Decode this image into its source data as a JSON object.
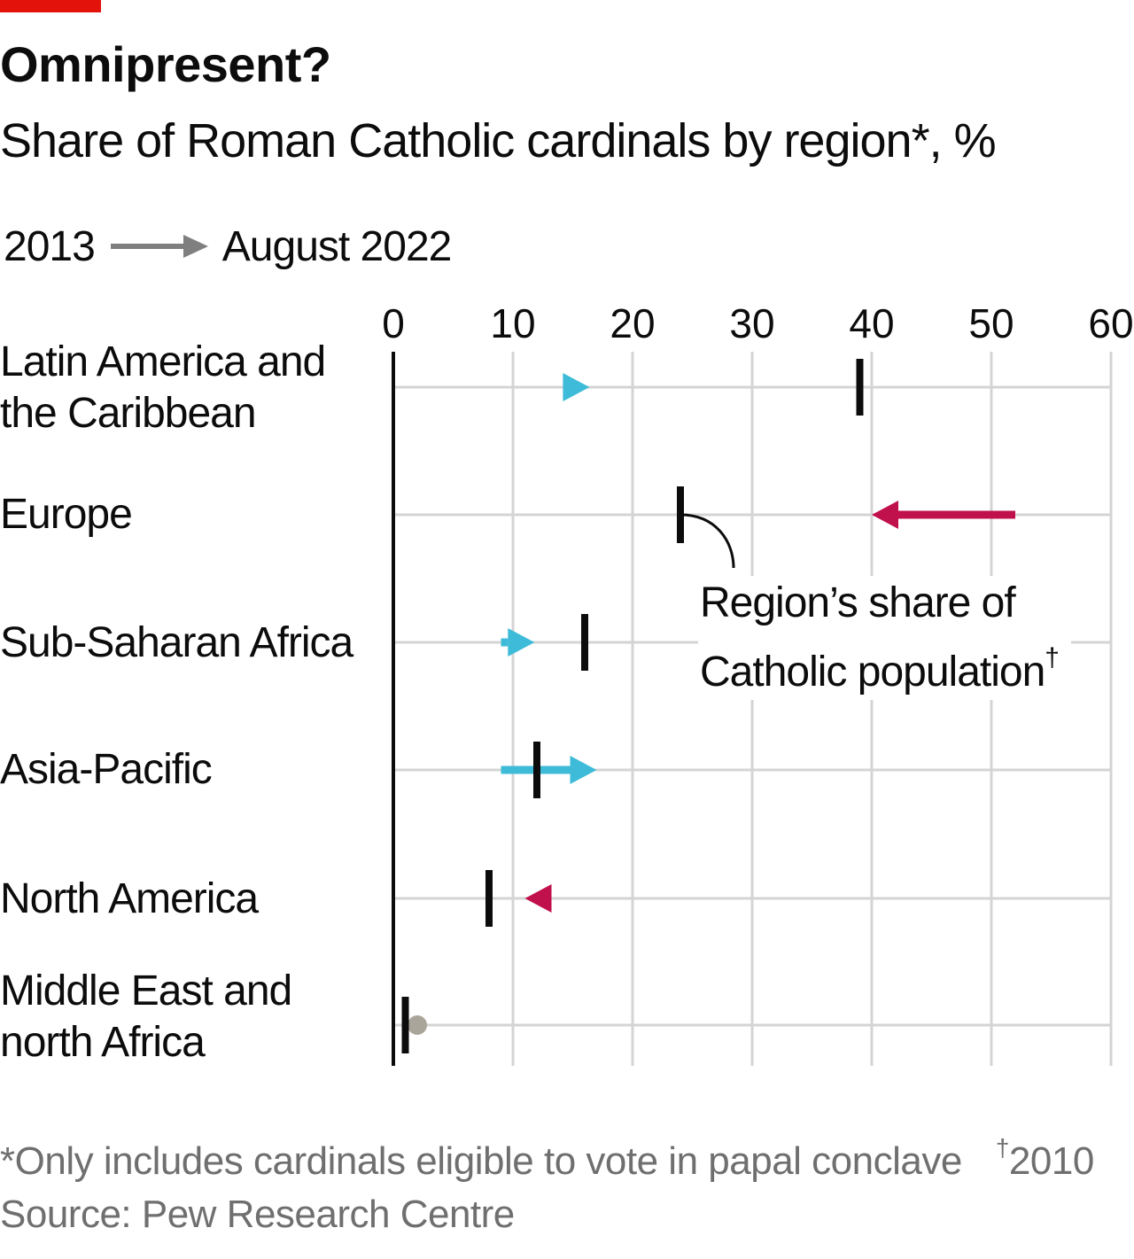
{
  "header": {
    "title": "Omnipresent?",
    "subtitle": "Share of Roman Catholic cardinals by region*, %"
  },
  "legend": {
    "from_label": "2013",
    "to_label": "August 2022"
  },
  "annotation": {
    "line1": "Region’s share of",
    "line2": "Catholic population",
    "marker": "†"
  },
  "footer": {
    "note": "*Only includes cardinals eligible to vote in papal conclave",
    "dagger_mark": "†",
    "dagger_text": "2010",
    "source": "Source: Pew Research Centre"
  },
  "colors": {
    "increase": "#3ebbd8",
    "decrease": "#c0114c",
    "no_change": "#aaa59a",
    "grid": "#d4d4d4",
    "axis": "#0c0c0c",
    "population_marker": "#0c0c0c",
    "brand_red": "#e3120b",
    "legend_arrow": "#7f7f7f"
  },
  "chart_data": {
    "type": "arrow-dot-plot",
    "x_axis": {
      "min": 0,
      "max": 60,
      "ticks": [
        0,
        10,
        20,
        30,
        40,
        50,
        60
      ],
      "position": "top"
    },
    "grid": true,
    "regions": [
      {
        "name": "Latin America and the Caribbean",
        "label_lines": [
          "Latin America and",
          "the Caribbean"
        ],
        "cardinals_2013": 16.2,
        "cardinals_2022": 16.4,
        "population_2010": 39
      },
      {
        "name": "Europe",
        "label_lines": [
          "Europe"
        ],
        "cardinals_2013": 52,
        "cardinals_2022": 40,
        "population_2010": 24
      },
      {
        "name": "Sub-Saharan Africa",
        "label_lines": [
          "Sub-Saharan Africa"
        ],
        "cardinals_2013": 9,
        "cardinals_2022": 11.8,
        "population_2010": 16
      },
      {
        "name": "Asia-Pacific",
        "label_lines": [
          "Asia-Pacific"
        ],
        "cardinals_2013": 9,
        "cardinals_2022": 17,
        "population_2010": 12
      },
      {
        "name": "North America",
        "label_lines": [
          "North America"
        ],
        "cardinals_2013": 13,
        "cardinals_2022": 11,
        "population_2010": 8
      },
      {
        "name": "Middle East and north Africa",
        "label_lines": [
          "Middle East and",
          "north Africa"
        ],
        "cardinals_2013": 2,
        "cardinals_2022": 2,
        "population_2010": 1
      }
    ]
  }
}
